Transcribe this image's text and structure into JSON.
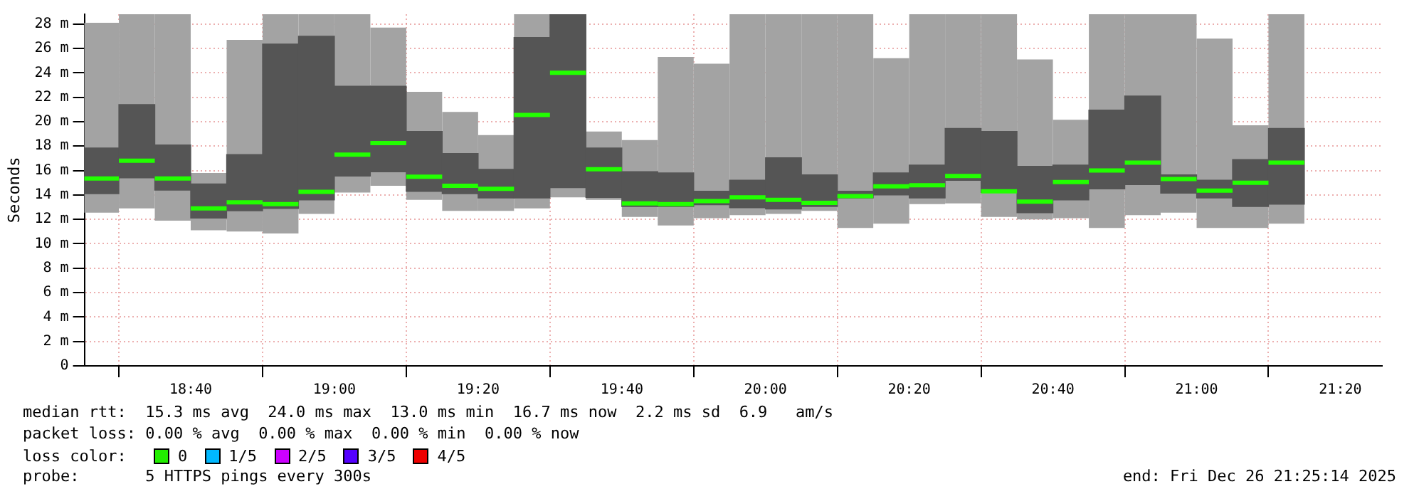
{
  "chart_data": {
    "type": "box",
    "ylabel": "Seconds",
    "color": "#555555",
    "x": [
      18.4583,
      18.5417,
      18.625,
      18.7083,
      18.7917,
      18.875,
      18.9583,
      19.0417,
      19.125,
      19.2083,
      19.2917,
      19.375,
      19.4583,
      19.5417,
      19.625,
      19.7083,
      19.7917,
      19.875,
      19.9583,
      20.0417,
      20.125,
      20.2083,
      20.2917,
      20.375,
      20.4583,
      20.5417,
      20.625,
      20.7083,
      20.7917,
      20.875,
      20.9583,
      21.0417,
      21.125,
      21.2083
    ],
    "boxes": [
      {
        "low": 12.55,
        "q1": 14.1,
        "median": 15.35,
        "q3": 17.85,
        "high": 28.1
      },
      {
        "low": 12.9,
        "q1": 15.4,
        "median": 16.8,
        "q3": 21.4,
        "high": 28.8
      },
      {
        "low": 11.9,
        "q1": 14.4,
        "median": 15.35,
        "q3": 18.1,
        "high": 28.8
      },
      {
        "low": 11.1,
        "q1": 12.1,
        "median": 12.9,
        "q3": 14.9,
        "high": 15.8
      },
      {
        "low": 11.0,
        "q1": 12.7,
        "median": 13.4,
        "q3": 17.3,
        "high": 26.7
      },
      {
        "low": 10.85,
        "q1": 12.9,
        "median": 13.25,
        "q3": 26.35,
        "high": 28.8
      },
      {
        "low": 12.45,
        "q1": 13.6,
        "median": 14.25,
        "q3": 27.0,
        "high": 28.8
      },
      {
        "low": 14.2,
        "q1": 15.55,
        "median": 17.3,
        "q3": 22.9,
        "high": 28.8
      },
      {
        "low": 14.75,
        "q1": 15.9,
        "median": 18.25,
        "q3": 22.9,
        "high": 27.7
      },
      {
        "low": 13.6,
        "q1": 14.3,
        "median": 15.5,
        "q3": 19.2,
        "high": 22.45
      },
      {
        "low": 12.7,
        "q1": 14.1,
        "median": 14.75,
        "q3": 17.4,
        "high": 20.8
      },
      {
        "low": 12.7,
        "q1": 13.75,
        "median": 14.5,
        "q3": 16.1,
        "high": 18.9
      },
      {
        "low": 12.9,
        "q1": 13.75,
        "median": 20.55,
        "q3": 26.9,
        "high": 28.8
      },
      {
        "low": 13.8,
        "q1": 14.6,
        "median": 24.0,
        "q3": 28.8,
        "high": 28.8
      },
      {
        "low": 13.6,
        "q1": 13.8,
        "median": 16.1,
        "q3": 17.85,
        "high": 19.2
      },
      {
        "low": 12.2,
        "q1": 13.05,
        "median": 13.3,
        "q3": 15.9,
        "high": 18.5
      },
      {
        "low": 11.5,
        "q1": 13.05,
        "median": 13.25,
        "q3": 15.8,
        "high": 25.3
      },
      {
        "low": 12.1,
        "q1": 13.2,
        "median": 13.5,
        "q3": 14.3,
        "high": 24.75
      },
      {
        "low": 12.35,
        "q1": 12.95,
        "median": 13.8,
        "q3": 15.2,
        "high": 28.8
      },
      {
        "low": 12.45,
        "q1": 12.85,
        "median": 13.6,
        "q3": 17.05,
        "high": 28.8
      },
      {
        "low": 12.7,
        "q1": 13.05,
        "median": 13.35,
        "q3": 15.65,
        "high": 28.8
      },
      {
        "low": 11.3,
        "q1": 13.75,
        "median": 13.9,
        "q3": 14.3,
        "high": 28.8
      },
      {
        "low": 11.65,
        "q1": 14.0,
        "median": 14.7,
        "q3": 15.8,
        "high": 25.2
      },
      {
        "low": 13.25,
        "q1": 13.75,
        "median": 14.8,
        "q3": 16.45,
        "high": 28.8
      },
      {
        "low": 13.3,
        "q1": 15.2,
        "median": 15.55,
        "q3": 19.45,
        "high": 28.8
      },
      {
        "low": 12.2,
        "q1": 14.2,
        "median": 14.3,
        "q3": 19.2,
        "high": 28.8
      },
      {
        "low": 12.0,
        "q1": 12.55,
        "median": 13.45,
        "q3": 16.35,
        "high": 25.1
      },
      {
        "low": 12.1,
        "q1": 13.6,
        "median": 15.05,
        "q3": 16.45,
        "high": 20.15
      },
      {
        "low": 11.3,
        "q1": 14.5,
        "median": 16.0,
        "q3": 20.95,
        "high": 28.8
      },
      {
        "low": 12.35,
        "q1": 14.85,
        "median": 16.65,
        "q3": 22.1,
        "high": 28.8
      },
      {
        "low": 12.55,
        "q1": 14.15,
        "median": 15.3,
        "q3": 15.65,
        "high": 28.8
      },
      {
        "low": 11.3,
        "q1": 13.75,
        "median": 14.35,
        "q3": 15.2,
        "high": 26.8
      },
      {
        "low": 11.3,
        "q1": 13.05,
        "median": 15.0,
        "q3": 16.9,
        "high": 19.7
      },
      {
        "low": 11.65,
        "q1": 13.25,
        "median": 16.65,
        "q3": 19.45,
        "high": 28.8
      }
    ],
    "xlim": [
      18.42,
      21.43
    ],
    "xticks": [
      {
        "value": 18.6667,
        "label": "18:40"
      },
      {
        "value": 19,
        "label": "19:00"
      },
      {
        "value": 19.3333,
        "label": "19:20"
      },
      {
        "value": 19.6667,
        "label": "19:40"
      },
      {
        "value": 20,
        "label": "20:00"
      },
      {
        "value": 20.3333,
        "label": "20:20"
      },
      {
        "value": 20.6667,
        "label": "20:40"
      },
      {
        "value": 21,
        "label": "21:00"
      },
      {
        "value": 21.3333,
        "label": "21:20"
      }
    ],
    "ylim": [
      0,
      28.8
    ],
    "yticks": [
      {
        "value": 0,
        "label": "0"
      },
      {
        "value": 2,
        "label": "2 m"
      },
      {
        "value": 4,
        "label": "4 m"
      },
      {
        "value": 6,
        "label": "6 m"
      },
      {
        "value": 8,
        "label": "8 m"
      },
      {
        "value": 10,
        "label": "10 m"
      },
      {
        "value": 12,
        "label": "12 m"
      },
      {
        "value": 14,
        "label": "14 m"
      },
      {
        "value": 16,
        "label": "16 m"
      },
      {
        "value": 18,
        "label": "18 m"
      },
      {
        "value": 20,
        "label": "20 m"
      },
      {
        "value": 22,
        "label": "22 m"
      },
      {
        "value": 24,
        "label": "24 m"
      },
      {
        "value": 26,
        "label": "26 m"
      },
      {
        "value": 28,
        "label": "28 m"
      }
    ],
    "grid": true,
    "annotations": [
      "median rtt:  15.3 ms avg  24.0 ms max  13.0 ms min  16.7 ms now  2.2 ms sd  6.9   am/s",
      "packet loss: 0.00 % avg  0.00 % max  0.00 % min  0.00 % now",
      "loss color:",
      "0",
      "1/5",
      "2/5",
      "3/5",
      "4/5",
      "probe:       5 HTTPS pings every 300s",
      "end: Fri Dec 26 21:25:14 2025"
    ]
  }
}
